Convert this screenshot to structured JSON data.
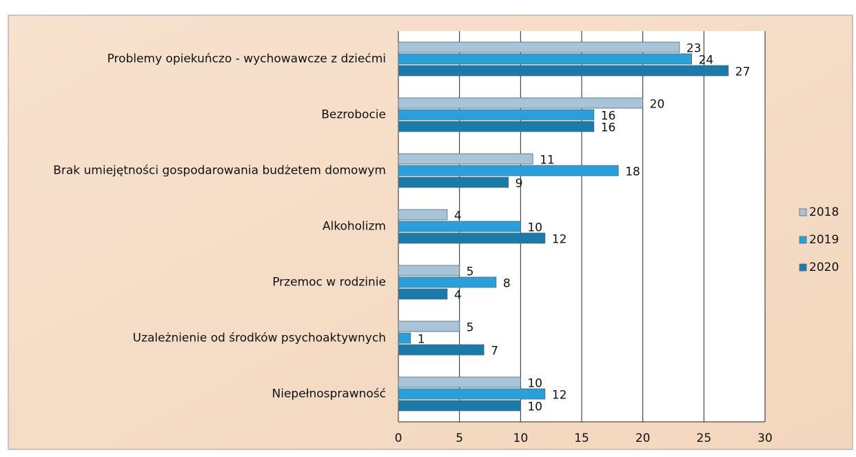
{
  "chart_data": {
    "type": "hbar",
    "categories": [
      "Problemy opiekuńczo - wychowawcze z dziećmi",
      "Bezrobocie",
      "Brak umiejętności gospodarowania budżetem domowym",
      "Alkoholizm",
      "Przemoc w rodzinie",
      "Uzależnienie od środków psychoaktywnych",
      "Niepełnosprawność"
    ],
    "series": [
      {
        "name": "2018",
        "color": "#a8c4d6",
        "values": [
          23,
          20,
          11,
          4,
          5,
          5,
          10
        ]
      },
      {
        "name": "2019",
        "color": "#2b9fd8",
        "values": [
          24,
          16,
          18,
          10,
          8,
          1,
          12
        ]
      },
      {
        "name": "2020",
        "color": "#1b7aa8",
        "values": [
          27,
          16,
          9,
          12,
          4,
          7,
          10
        ]
      }
    ],
    "xlim": [
      0,
      30
    ],
    "xticks": [
      0,
      5,
      10,
      15,
      20,
      25,
      30
    ],
    "grid": true,
    "legend": "right"
  }
}
